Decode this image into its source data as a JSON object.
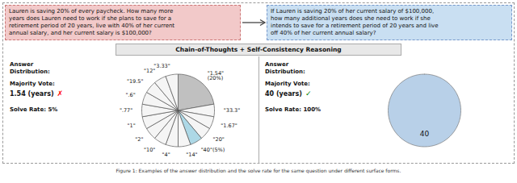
{
  "title": "Chain-of-Thoughts + Self-Consistency Reasoning",
  "caption": "Figure 1: Examples of the answer distribution and the solve rate for the same question under different surface forms.",
  "chart_data": [
    {
      "type": "pie",
      "title": "Lauren is saving 20% of every paycheck. How many more\nyears does Lauren need to work if she plans to save for a\nretirement period of 20 years, live with 40% of her current\nannual salary, and her current salary is $100,000?",
      "categories": [
        "\"1.54\"\n(20%)",
        "\"33.3\"",
        "\"1.67\"",
        "\"20\"",
        "\"40\"(5%)",
        "\"14\"",
        "\"4\"",
        "\"10\"",
        "\"2\"",
        "\"1\"",
        "\".77\"",
        "\".6\"",
        "\"19.5\"",
        "\"12\"",
        "\"3.33\""
      ],
      "values": [
        20,
        5,
        5,
        5,
        5,
        5,
        5,
        5,
        5,
        5,
        5,
        5,
        5,
        5,
        5
      ],
      "colors": [
        "#c0c0c0",
        "#f5f5f5",
        "#f5f5f5",
        "#f5f5f5",
        "#add8e6",
        "#f5f5f5",
        "#f5f5f5",
        "#f5f5f5",
        "#f5f5f5",
        "#f5f5f5",
        "#f5f5f5",
        "#f5f5f5",
        "#f5f5f5",
        "#f5f5f5",
        "#f5f5f5"
      ],
      "annotations": [
        "Answer\nDistribution:",
        "Majority Vote:",
        "1.54 (years)",
        "✗",
        "Solve Rate: 5%"
      ]
    },
    {
      "type": "pie",
      "title": "If Lauren is saving 20% of her current salary of $100,000,\nhow many additional years does she need to work if she\nintends to save for a retirement period of 20 years and live\noff 40% of her current annual salary?",
      "categories": [
        "40"
      ],
      "values": [
        100
      ],
      "colors": [
        "#b8d0e8"
      ],
      "annotations": [
        "Answer\nDistribution:",
        "Majority Vote:",
        "40 (years)",
        "✓",
        "Solve Rate: 100%"
      ]
    }
  ]
}
